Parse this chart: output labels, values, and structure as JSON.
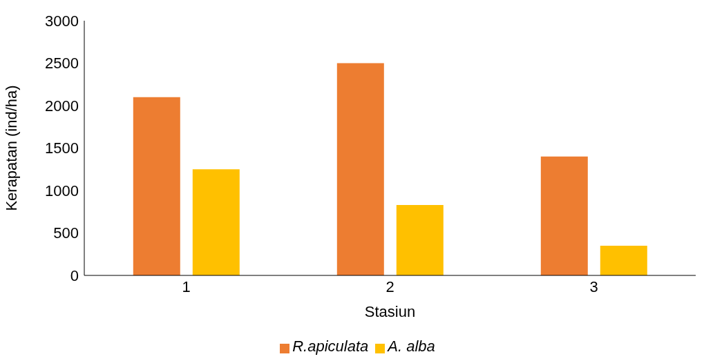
{
  "chart_data": {
    "type": "bar",
    "xlabel": "Stasiun",
    "ylabel": "Kerapatan (ind/ha)",
    "categories": [
      "1",
      "2",
      "3"
    ],
    "series": [
      {
        "name": "R.apiculata",
        "color": "#ed7d31",
        "values": [
          2100,
          2500,
          1400
        ]
      },
      {
        "name": "A. alba",
        "color": "#ffc000",
        "values": [
          1250,
          830,
          350
        ]
      }
    ],
    "ylim": [
      0,
      3000
    ],
    "yticks": [
      0,
      500,
      1000,
      1500,
      2000,
      2500,
      3000
    ],
    "grid": false,
    "legend": "bottom"
  }
}
